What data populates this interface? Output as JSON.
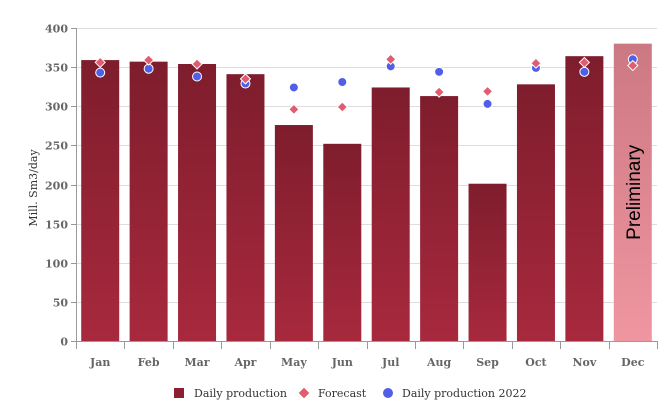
{
  "chart_data": {
    "type": "bar",
    "ylabel": "Mill. Sm3/day",
    "ylim": [
      0,
      400
    ],
    "yticks": [
      0,
      50,
      100,
      150,
      200,
      250,
      300,
      350,
      400
    ],
    "grid": true,
    "legend_position": "bottom",
    "categories": [
      "Jan",
      "Feb",
      "Mar",
      "Apr",
      "May",
      "Jun",
      "Jul",
      "Aug",
      "Sep",
      "Oct",
      "Nov",
      "Dec"
    ],
    "series": [
      {
        "name": "Daily production",
        "kind": "bar",
        "color": "#8e1e32",
        "highlight_color": "#e8909b",
        "values": [
          359,
          357,
          354,
          341,
          276,
          252,
          324,
          313,
          201,
          328,
          364,
          380
        ]
      },
      {
        "name": "Forecast",
        "kind": "diamond",
        "color": "#e05c6e",
        "values": [
          356,
          359,
          354,
          335,
          296,
          299,
          360,
          318,
          319,
          355,
          356,
          352
        ]
      },
      {
        "name": "Daily production 2022",
        "kind": "circle",
        "color": "#4f5fe8",
        "values": [
          343,
          348,
          338,
          329,
          324,
          331,
          351,
          344,
          303,
          349,
          344,
          360
        ]
      }
    ],
    "annotations": [
      {
        "category": "Dec",
        "text": "Preliminary"
      }
    ]
  }
}
